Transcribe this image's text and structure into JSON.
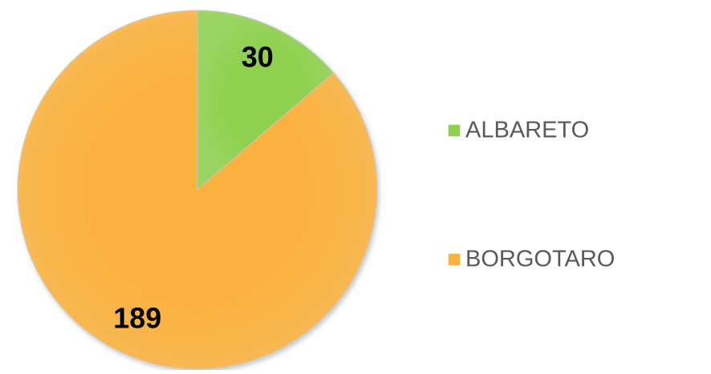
{
  "chart_data": {
    "type": "pie",
    "categories": [
      "ALBARETO",
      "BORGOTARO"
    ],
    "values": [
      30,
      189
    ],
    "colors": [
      "#8fd14f",
      "#fbb13c"
    ]
  }
}
